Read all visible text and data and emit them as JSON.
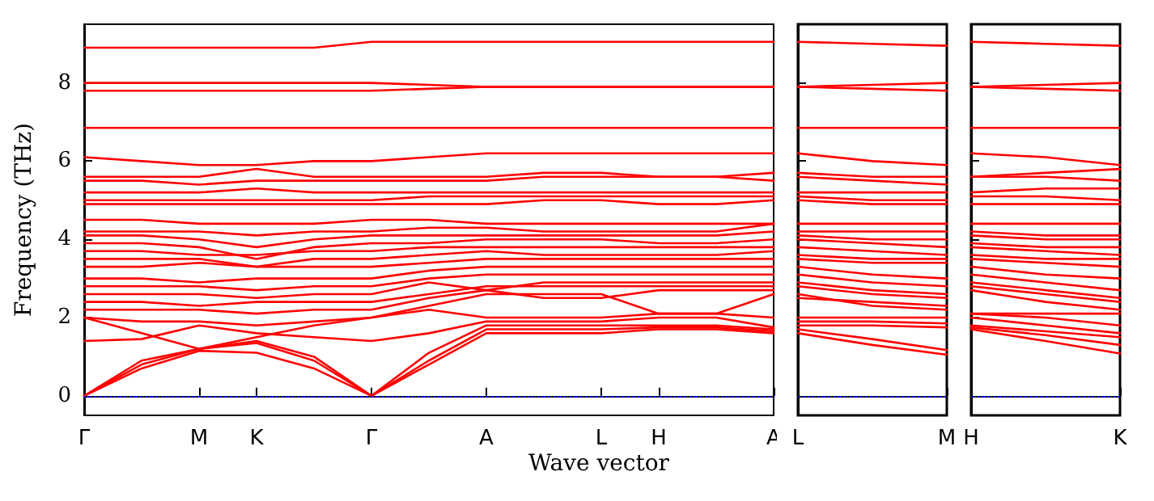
{
  "chart_data": [
    {
      "type": "line",
      "xlabel": "Wave vector",
      "ylabel": "Frequency (THz)",
      "categories": [
        "Γ",
        null,
        "M",
        "K",
        null,
        "Γ",
        null,
        "A",
        null,
        "L",
        "H",
        null,
        "A"
      ],
      "ylim": [
        -0.5,
        9.5
      ],
      "yticks": [
        0,
        2,
        4,
        6,
        8
      ],
      "ref_lines": [
        {
          "axis": "y",
          "value": 0,
          "color": "#0000ff",
          "line_style": "dotted"
        }
      ],
      "series": [
        {
          "color": "#ff0000",
          "values": [
            0,
            0.7,
            1.15,
            1.1,
            0.7,
            0,
            0.8,
            1.6,
            1.6,
            1.6,
            1.7,
            1.7,
            1.6
          ]
        },
        {
          "color": "#ff0000",
          "values": [
            0,
            0.8,
            1.2,
            1.35,
            0.9,
            0,
            0.9,
            1.7,
            1.7,
            1.7,
            1.75,
            1.75,
            1.65
          ]
        },
        {
          "color": "#ff0000",
          "values": [
            0,
            0.9,
            1.2,
            1.4,
            1.0,
            0,
            1.1,
            1.8,
            1.8,
            1.8,
            1.8,
            1.8,
            1.7
          ]
        },
        {
          "color": "#ff0000",
          "values": [
            1.4,
            1.45,
            1.8,
            1.6,
            1.5,
            1.4,
            1.6,
            1.9,
            1.9,
            1.9,
            2.0,
            2.0,
            1.75
          ]
        },
        {
          "color": "#ff0000",
          "values": [
            2.0,
            1.6,
            1.2,
            1.5,
            1.8,
            2.0,
            2.2,
            2.0,
            2.0,
            2.0,
            2.1,
            2.1,
            2.0
          ]
        },
        {
          "color": "#ff0000",
          "values": [
            2.0,
            1.9,
            1.9,
            1.8,
            1.9,
            2.0,
            2.3,
            2.6,
            2.6,
            2.6,
            2.1,
            2.1,
            2.6
          ]
        },
        {
          "color": "#ff0000",
          "values": [
            2.2,
            2.2,
            2.2,
            2.1,
            2.2,
            2.2,
            2.5,
            2.7,
            2.5,
            2.5,
            2.7,
            2.7,
            2.7
          ]
        },
        {
          "color": "#ff0000",
          "values": [
            2.4,
            2.4,
            2.3,
            2.4,
            2.4,
            2.4,
            2.6,
            2.8,
            2.8,
            2.8,
            2.8,
            2.8,
            2.8
          ]
        },
        {
          "color": "#ff0000",
          "values": [
            2.6,
            2.6,
            2.6,
            2.5,
            2.6,
            2.6,
            2.9,
            2.7,
            2.9,
            2.9,
            2.9,
            2.9,
            2.9
          ]
        },
        {
          "color": "#ff0000",
          "values": [
            2.8,
            2.8,
            2.8,
            2.7,
            2.8,
            2.8,
            3.0,
            3.1,
            3.1,
            3.1,
            3.1,
            3.1,
            3.1
          ]
        },
        {
          "color": "#ff0000",
          "values": [
            3.0,
            3.0,
            2.9,
            3.0,
            3.0,
            3.0,
            3.2,
            3.3,
            3.3,
            3.3,
            3.3,
            3.3,
            3.3
          ]
        },
        {
          "color": "#ff0000",
          "values": [
            3.3,
            3.3,
            3.4,
            3.3,
            3.3,
            3.3,
            3.4,
            3.5,
            3.5,
            3.5,
            3.5,
            3.5,
            3.5
          ]
        },
        {
          "color": "#ff0000",
          "values": [
            3.5,
            3.5,
            3.5,
            3.3,
            3.5,
            3.5,
            3.6,
            3.7,
            3.6,
            3.6,
            3.6,
            3.6,
            3.7
          ]
        },
        {
          "color": "#ff0000",
          "values": [
            3.7,
            3.7,
            3.6,
            3.6,
            3.7,
            3.7,
            3.8,
            3.8,
            3.8,
            3.8,
            3.8,
            3.8,
            3.8
          ]
        },
        {
          "color": "#ff0000",
          "values": [
            3.9,
            3.9,
            3.8,
            3.5,
            3.8,
            3.9,
            3.9,
            4.0,
            4.0,
            4.0,
            3.9,
            3.9,
            4.0
          ]
        },
        {
          "color": "#ff0000",
          "values": [
            4.1,
            4.1,
            4.0,
            3.8,
            4.0,
            4.1,
            4.1,
            4.1,
            4.1,
            4.1,
            4.1,
            4.1,
            4.2
          ]
        },
        {
          "color": "#ff0000",
          "values": [
            4.2,
            4.2,
            4.2,
            4.1,
            4.2,
            4.2,
            4.3,
            4.3,
            4.2,
            4.2,
            4.2,
            4.2,
            4.4
          ]
        },
        {
          "color": "#ff0000",
          "values": [
            4.5,
            4.5,
            4.4,
            4.4,
            4.4,
            4.5,
            4.5,
            4.4,
            4.4,
            4.4,
            4.4,
            4.4,
            4.4
          ]
        },
        {
          "color": "#ff0000",
          "values": [
            4.9,
            4.9,
            4.9,
            4.9,
            4.9,
            4.9,
            4.9,
            4.9,
            5.0,
            5.0,
            4.9,
            4.9,
            5.0
          ]
        },
        {
          "color": "#ff0000",
          "values": [
            5.0,
            5.0,
            5.0,
            5.0,
            5.0,
            5.0,
            5.1,
            5.1,
            5.1,
            5.1,
            5.1,
            5.1,
            5.1
          ]
        },
        {
          "color": "#ff0000",
          "values": [
            5.2,
            5.2,
            5.2,
            5.3,
            5.2,
            5.2,
            5.2,
            5.2,
            5.2,
            5.2,
            5.2,
            5.2,
            5.2
          ]
        },
        {
          "color": "#ff0000",
          "values": [
            5.5,
            5.5,
            5.4,
            5.5,
            5.5,
            5.5,
            5.5,
            5.5,
            5.6,
            5.6,
            5.6,
            5.6,
            5.5
          ]
        },
        {
          "color": "#ff0000",
          "values": [
            5.6,
            5.6,
            5.6,
            5.8,
            5.6,
            5.6,
            5.6,
            5.6,
            5.7,
            5.7,
            5.6,
            5.6,
            5.7
          ]
        },
        {
          "color": "#ff0000",
          "values": [
            6.1,
            6.0,
            5.9,
            5.9,
            6.0,
            6.0,
            6.1,
            6.2,
            6.2,
            6.2,
            6.2,
            6.2,
            6.2
          ]
        },
        {
          "color": "#ff0000",
          "values": [
            6.85,
            6.85,
            6.85,
            6.85,
            6.85,
            6.85,
            6.85,
            6.85,
            6.85,
            6.85,
            6.85,
            6.85,
            6.85
          ]
        },
        {
          "color": "#ff0000",
          "values": [
            7.8,
            7.8,
            7.8,
            7.8,
            7.8,
            7.8,
            7.85,
            7.9,
            7.9,
            7.9,
            7.9,
            7.9,
            7.9
          ]
        },
        {
          "color": "#ff0000",
          "values": [
            8.0,
            8.0,
            8.0,
            8.0,
            8.0,
            8.0,
            7.95,
            7.9,
            7.9,
            7.9,
            7.9,
            7.9,
            7.9
          ]
        },
        {
          "color": "#ff0000",
          "values": [
            8.9,
            8.9,
            8.9,
            8.9,
            8.9,
            9.05,
            9.05,
            9.05,
            9.05,
            9.05,
            9.05,
            9.05,
            9.05
          ]
        }
      ]
    },
    {
      "type": "line",
      "categories": [
        "L",
        null,
        "M"
      ],
      "ylim": [
        -0.5,
        9.5
      ],
      "yticks": [
        0,
        2,
        4,
        6,
        8
      ],
      "tick_labels": "x",
      "ref_lines": [
        {
          "axis": "y",
          "value": 0,
          "color": "#0000ff",
          "line_style": "dotted"
        }
      ],
      "series": [
        {
          "color": "#ff0000",
          "values": [
            1.6,
            1.3,
            1.05
          ]
        },
        {
          "color": "#ff0000",
          "values": [
            1.7,
            1.45,
            1.17
          ]
        },
        {
          "color": "#ff0000",
          "values": [
            1.8,
            1.8,
            1.75
          ]
        },
        {
          "color": "#ff0000",
          "values": [
            1.9,
            1.9,
            1.85
          ]
        },
        {
          "color": "#ff0000",
          "values": [
            2.0,
            2.0,
            2.0
          ]
        },
        {
          "color": "#ff0000",
          "values": [
            2.6,
            2.3,
            2.2
          ]
        },
        {
          "color": "#ff0000",
          "values": [
            2.5,
            2.4,
            2.3
          ]
        },
        {
          "color": "#ff0000",
          "values": [
            2.8,
            2.6,
            2.5
          ]
        },
        {
          "color": "#ff0000",
          "values": [
            2.9,
            2.7,
            2.6
          ]
        },
        {
          "color": "#ff0000",
          "values": [
            3.1,
            2.9,
            2.8
          ]
        },
        {
          "color": "#ff0000",
          "values": [
            3.3,
            3.1,
            3.0
          ]
        },
        {
          "color": "#ff0000",
          "values": [
            3.5,
            3.4,
            3.4
          ]
        },
        {
          "color": "#ff0000",
          "values": [
            3.6,
            3.5,
            3.5
          ]
        },
        {
          "color": "#ff0000",
          "values": [
            3.8,
            3.7,
            3.6
          ]
        },
        {
          "color": "#ff0000",
          "values": [
            4.0,
            3.9,
            3.8
          ]
        },
        {
          "color": "#ff0000",
          "values": [
            4.1,
            4.0,
            4.0
          ]
        },
        {
          "color": "#ff0000",
          "values": [
            4.2,
            4.2,
            4.2
          ]
        },
        {
          "color": "#ff0000",
          "values": [
            4.4,
            4.4,
            4.4
          ]
        },
        {
          "color": "#ff0000",
          "values": [
            5.0,
            4.9,
            4.9
          ]
        },
        {
          "color": "#ff0000",
          "values": [
            5.1,
            5.0,
            5.0
          ]
        },
        {
          "color": "#ff0000",
          "values": [
            5.2,
            5.2,
            5.2
          ]
        },
        {
          "color": "#ff0000",
          "values": [
            5.6,
            5.5,
            5.4
          ]
        },
        {
          "color": "#ff0000",
          "values": [
            5.7,
            5.6,
            5.6
          ]
        },
        {
          "color": "#ff0000",
          "values": [
            6.2,
            6.0,
            5.9
          ]
        },
        {
          "color": "#ff0000",
          "values": [
            6.85,
            6.85,
            6.85
          ]
        },
        {
          "color": "#ff0000",
          "values": [
            7.9,
            7.85,
            7.8
          ]
        },
        {
          "color": "#ff0000",
          "values": [
            7.9,
            7.95,
            8.0
          ]
        },
        {
          "color": "#ff0000",
          "values": [
            9.05,
            9.0,
            8.95
          ]
        }
      ]
    },
    {
      "type": "line",
      "categories": [
        "H",
        null,
        "K"
      ],
      "ylim": [
        -0.5,
        9.5
      ],
      "yticks": [
        0,
        2,
        4,
        6,
        8
      ],
      "tick_labels": "x",
      "ref_lines": [
        {
          "axis": "y",
          "value": 0,
          "color": "#0000ff",
          "line_style": "dotted"
        }
      ],
      "series": [
        {
          "color": "#ff0000",
          "values": [
            1.7,
            1.4,
            1.08
          ]
        },
        {
          "color": "#ff0000",
          "values": [
            1.75,
            1.55,
            1.3
          ]
        },
        {
          "color": "#ff0000",
          "values": [
            1.8,
            1.65,
            1.5
          ]
        },
        {
          "color": "#ff0000",
          "values": [
            2.0,
            1.8,
            1.6
          ]
        },
        {
          "color": "#ff0000",
          "values": [
            2.1,
            2.0,
            1.8
          ]
        },
        {
          "color": "#ff0000",
          "values": [
            2.1,
            2.1,
            2.1
          ]
        },
        {
          "color": "#ff0000",
          "values": [
            2.7,
            2.4,
            2.2
          ]
        },
        {
          "color": "#ff0000",
          "values": [
            2.8,
            2.6,
            2.4
          ]
        },
        {
          "color": "#ff0000",
          "values": [
            2.9,
            2.7,
            2.5
          ]
        },
        {
          "color": "#ff0000",
          "values": [
            3.1,
            2.9,
            2.7
          ]
        },
        {
          "color": "#ff0000",
          "values": [
            3.3,
            3.1,
            3.0
          ]
        },
        {
          "color": "#ff0000",
          "values": [
            3.5,
            3.4,
            3.3
          ]
        },
        {
          "color": "#ff0000",
          "values": [
            3.6,
            3.5,
            3.5
          ]
        },
        {
          "color": "#ff0000",
          "values": [
            3.8,
            3.7,
            3.6
          ]
        },
        {
          "color": "#ff0000",
          "values": [
            3.9,
            3.8,
            3.8
          ]
        },
        {
          "color": "#ff0000",
          "values": [
            4.1,
            4.0,
            4.0
          ]
        },
        {
          "color": "#ff0000",
          "values": [
            4.2,
            4.1,
            4.1
          ]
        },
        {
          "color": "#ff0000",
          "values": [
            4.4,
            4.4,
            4.4
          ]
        },
        {
          "color": "#ff0000",
          "values": [
            4.9,
            4.9,
            4.9
          ]
        },
        {
          "color": "#ff0000",
          "values": [
            5.1,
            5.1,
            5.0
          ]
        },
        {
          "color": "#ff0000",
          "values": [
            5.2,
            5.3,
            5.3
          ]
        },
        {
          "color": "#ff0000",
          "values": [
            5.6,
            5.6,
            5.5
          ]
        },
        {
          "color": "#ff0000",
          "values": [
            5.6,
            5.7,
            5.8
          ]
        },
        {
          "color": "#ff0000",
          "values": [
            6.2,
            6.1,
            5.9
          ]
        },
        {
          "color": "#ff0000",
          "values": [
            6.85,
            6.85,
            6.85
          ]
        },
        {
          "color": "#ff0000",
          "values": [
            7.9,
            7.85,
            7.8
          ]
        },
        {
          "color": "#ff0000",
          "values": [
            7.9,
            7.95,
            8.0
          ]
        },
        {
          "color": "#ff0000",
          "values": [
            9.05,
            9.0,
            8.95
          ]
        }
      ]
    }
  ]
}
